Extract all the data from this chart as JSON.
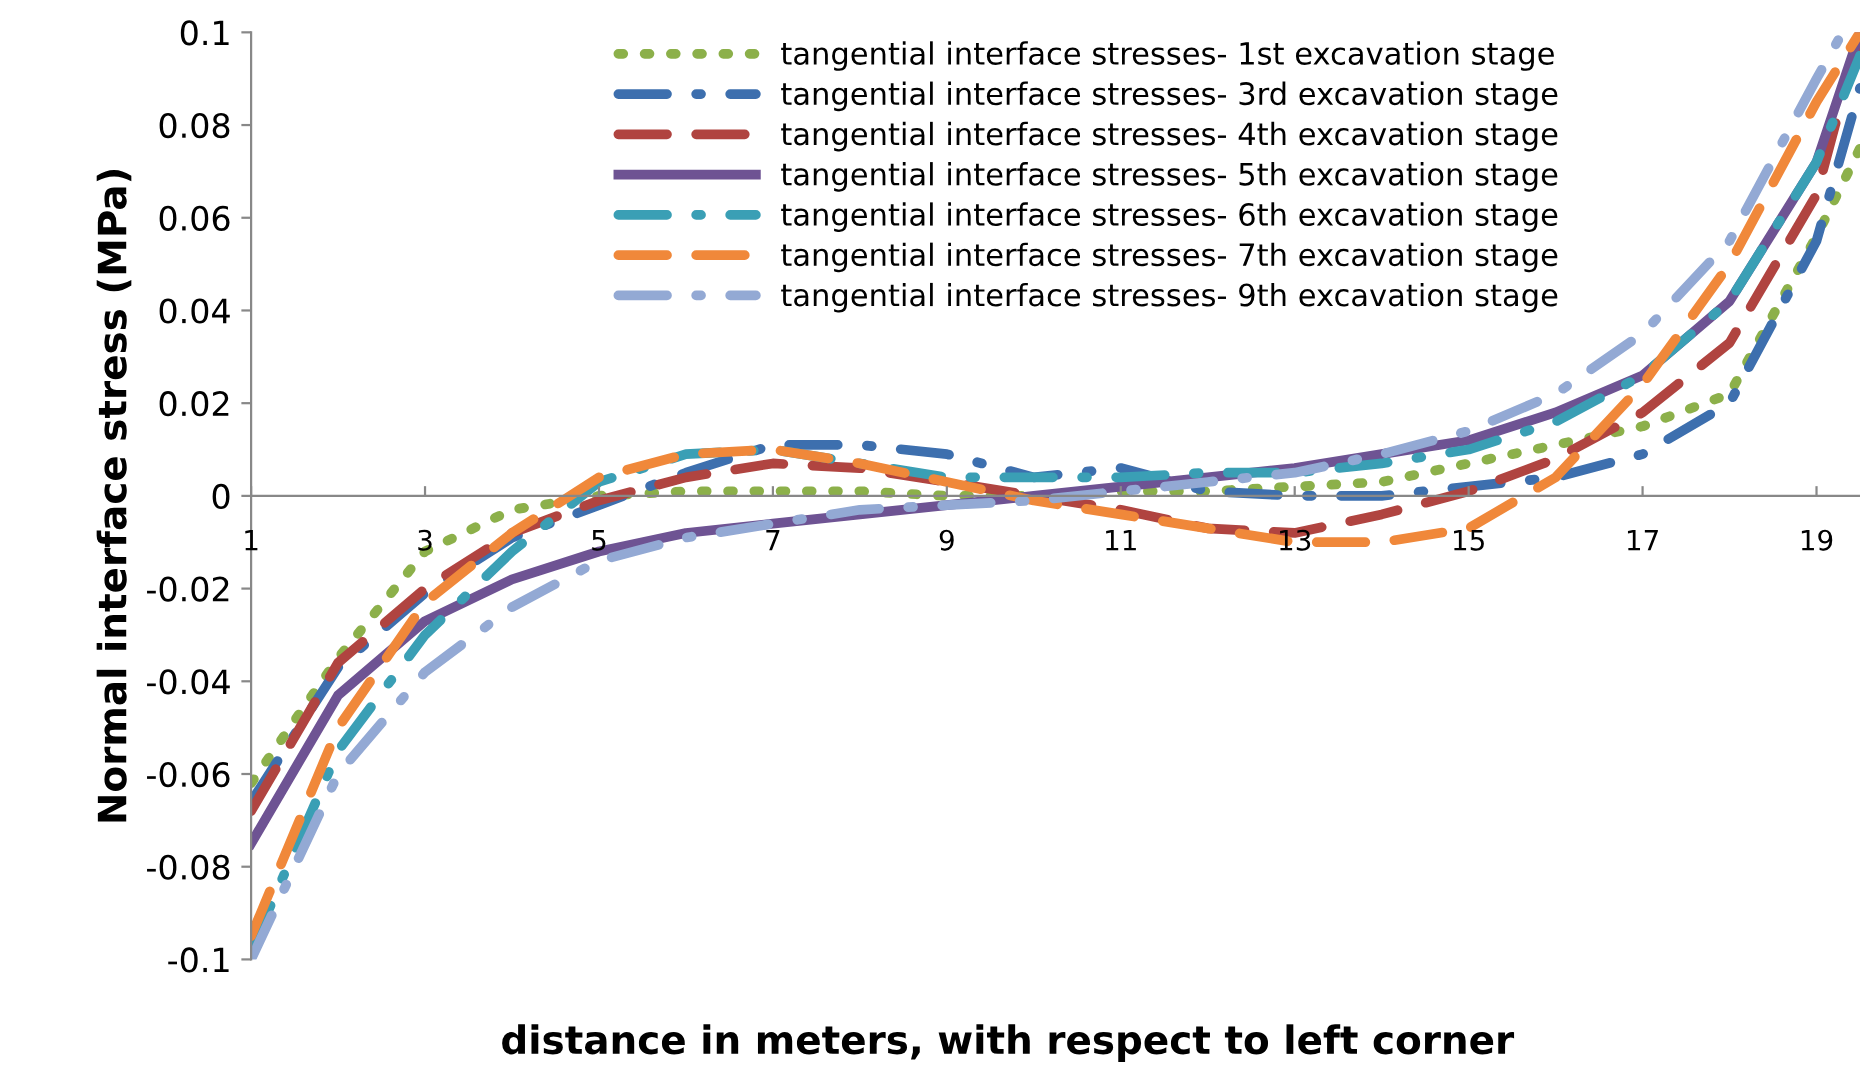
{
  "chart_data": {
    "type": "line",
    "xlabel": "distance in meters, with respect to left corner",
    "ylabel": "Normal interface stress (MPa)",
    "x": [
      1,
      2,
      3,
      4,
      5,
      6,
      7,
      8,
      9,
      10,
      11,
      12,
      13,
      14,
      15,
      16,
      17,
      18,
      19,
      19.5
    ],
    "xlim": [
      1,
      19.5
    ],
    "xticks": [
      1,
      3,
      5,
      7,
      9,
      11,
      13,
      15,
      17,
      19
    ],
    "ylim": [
      -0.1,
      0.1
    ],
    "yticks": [
      -0.1,
      -0.08,
      -0.06,
      -0.04,
      -0.02,
      0,
      0.02,
      0.04,
      0.06,
      0.08,
      0.1
    ],
    "grid": false,
    "legend": "top right",
    "series": [
      {
        "name": "tangential interface stresses- 1st excavation stage",
        "color": "#8cb04a",
        "line_style": "dotted",
        "values": [
          -0.062,
          -0.035,
          -0.012,
          -0.003,
          0.0,
          0.001,
          0.001,
          0.001,
          0.0,
          0.0,
          0.001,
          0.001,
          0.002,
          0.003,
          0.007,
          0.011,
          0.015,
          0.022,
          0.056,
          0.075
        ]
      },
      {
        "name": "tangential interface stresses- 3rd excavation stage",
        "color": "#3d6fae",
        "line_style": "dashdot",
        "values": [
          -0.066,
          -0.037,
          -0.021,
          -0.009,
          -0.002,
          0.005,
          0.011,
          0.011,
          0.009,
          0.004,
          0.006,
          0.001,
          0.0,
          0.0,
          0.002,
          0.004,
          0.009,
          0.02,
          0.055,
          0.088
        ]
      },
      {
        "name": "tangential interface stresses- 4th excavation stage",
        "color": "#b04440",
        "line_style": "dashed",
        "values": [
          -0.068,
          -0.036,
          -0.02,
          -0.008,
          -0.001,
          0.004,
          0.007,
          0.006,
          0.003,
          0.0,
          -0.003,
          -0.007,
          -0.008,
          -0.004,
          0.001,
          0.008,
          0.018,
          0.033,
          0.065,
          0.1
        ]
      },
      {
        "name": "tangential interface stresses- 5th excavation stage",
        "color": "#6e5393",
        "line_style": "solid",
        "values": [
          -0.075,
          -0.043,
          -0.027,
          -0.018,
          -0.012,
          -0.008,
          -0.006,
          -0.004,
          -0.002,
          0.0,
          0.002,
          0.004,
          0.006,
          0.009,
          0.012,
          0.018,
          0.026,
          0.042,
          0.072,
          0.1
        ]
      },
      {
        "name": "tangential interface stresses- 6th excavation stage",
        "color": "#3a9fb5",
        "line_style": "dashdot",
        "values": [
          -0.098,
          -0.055,
          -0.03,
          -0.012,
          0.003,
          0.009,
          0.01,
          0.007,
          0.004,
          0.004,
          0.004,
          0.005,
          0.005,
          0.007,
          0.01,
          0.016,
          0.026,
          0.042,
          0.072,
          0.095
        ]
      },
      {
        "name": "tangential interface stresses- 7th excavation stage",
        "color": "#f0883a",
        "line_style": "dashed",
        "values": [
          -0.095,
          -0.05,
          -0.023,
          -0.008,
          0.004,
          0.009,
          0.01,
          0.007,
          0.003,
          -0.001,
          -0.004,
          -0.007,
          -0.01,
          -0.01,
          -0.007,
          0.004,
          0.024,
          0.05,
          0.085,
          0.1
        ]
      },
      {
        "name": "tangential interface stresses- 9th excavation stage",
        "color": "#93a9d4",
        "line_style": "dashdot",
        "x": [
          1,
          2,
          3,
          4,
          5,
          6,
          7,
          8,
          9,
          10,
          11,
          12,
          13,
          14,
          15,
          16,
          17,
          18,
          19,
          19.3
        ],
        "values": [
          -0.1,
          -0.06,
          -0.038,
          -0.024,
          -0.014,
          -0.009,
          -0.006,
          -0.003,
          -0.002,
          -0.001,
          0.001,
          0.003,
          0.005,
          0.009,
          0.014,
          0.022,
          0.035,
          0.055,
          0.09,
          0.1
        ]
      }
    ]
  }
}
